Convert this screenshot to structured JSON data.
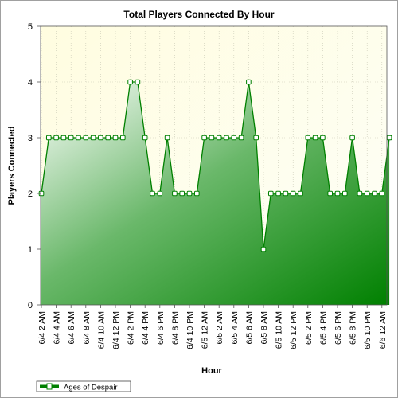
{
  "chart_data": {
    "type": "area",
    "title": "Total Players Connected By Hour",
    "xlabel": "Hour",
    "ylabel": "Players Connected",
    "ylim": [
      0,
      5
    ],
    "yticks": [
      0,
      1,
      2,
      3,
      4,
      5
    ],
    "grid": true,
    "legend_position": "bottom-left",
    "tick_labels": [
      "6/4 2 AM",
      "6/4 4 AM",
      "6/4 6 AM",
      "6/4 8 AM",
      "6/4 10 AM",
      "6/4 12 PM",
      "6/4 2 PM",
      "6/4 4 PM",
      "6/4 6 PM",
      "6/4 8 PM",
      "6/4 10 PM",
      "6/5 12 AM",
      "6/5 2 AM",
      "6/5 4 AM",
      "6/5 6 AM",
      "6/5 8 AM",
      "6/5 10 AM",
      "6/5 12 PM",
      "6/5 2 PM",
      "6/5 4 PM",
      "6/5 6 PM",
      "6/5 8 PM",
      "6/5 10 PM",
      "6/6 12 AM"
    ],
    "series": [
      {
        "name": "Ages of Despair",
        "color": "#008000",
        "values": [
          2,
          3,
          3,
          3,
          3,
          3,
          3,
          3,
          3,
          3,
          3,
          3,
          4,
          4,
          3,
          2,
          2,
          3,
          2,
          2,
          2,
          2,
          3,
          3,
          3,
          3,
          3,
          3,
          4,
          3,
          1,
          2,
          2,
          2,
          2,
          2,
          3,
          3,
          3,
          2,
          2,
          2,
          3,
          2,
          2,
          2,
          2,
          3
        ]
      }
    ]
  }
}
